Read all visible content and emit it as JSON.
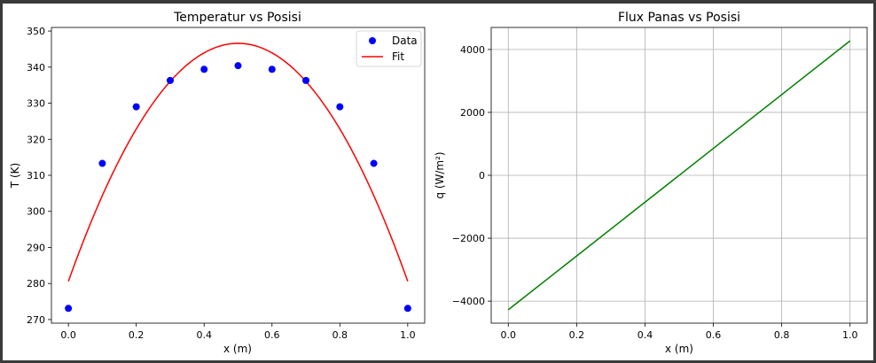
{
  "chart_data": [
    {
      "type": "scatter+line",
      "title": "Temperatur vs Posisi",
      "xlabel": "x (m)",
      "ylabel": "T (K)",
      "xlim": [
        -0.05,
        1.05
      ],
      "ylim": [
        269,
        351
      ],
      "xticks": [
        0.0,
        0.2,
        0.4,
        0.6,
        0.8,
        1.0
      ],
      "xtick_labels": [
        "0.0",
        "0.2",
        "0.4",
        "0.6",
        "0.8",
        "1.0"
      ],
      "yticks": [
        270,
        280,
        290,
        300,
        310,
        320,
        330,
        340,
        350
      ],
      "ytick_labels": [
        "270",
        "280",
        "290",
        "300",
        "310",
        "320",
        "330",
        "340",
        "350"
      ],
      "grid": false,
      "legend_position": "top-right",
      "series": [
        {
          "name": "Data",
          "kind": "scatter",
          "color": "#0000ff",
          "x": [
            0.0,
            0.1,
            0.2,
            0.3,
            0.4,
            0.5,
            0.6,
            0.7,
            0.8,
            0.9,
            1.0
          ],
          "y": [
            273.1,
            313.3,
            329.0,
            336.3,
            339.4,
            340.4,
            339.4,
            336.3,
            329.0,
            313.3,
            273.1
          ]
        },
        {
          "name": "Fit",
          "kind": "line",
          "color": "#ff0000",
          "model": "quadratic",
          "vertex_x": 0.5,
          "vertex_y": 346.6,
          "endpoint_y": 280.6
        }
      ]
    },
    {
      "type": "line",
      "title": "Flux Panas vs Posisi",
      "xlabel": "x (m)",
      "ylabel": "q (W/m²)",
      "xlim": [
        -0.05,
        1.05
      ],
      "ylim": [
        -4700,
        4700
      ],
      "xticks": [
        0.0,
        0.2,
        0.4,
        0.6,
        0.8,
        1.0
      ],
      "xtick_labels": [
        "0.0",
        "0.2",
        "0.4",
        "0.6",
        "0.8",
        "1.0"
      ],
      "yticks": [
        -4000,
        -2000,
        0,
        2000,
        4000
      ],
      "ytick_labels": [
        "−4000",
        "−2000",
        "0",
        "2000",
        "4000"
      ],
      "grid": true,
      "series": [
        {
          "kind": "line",
          "color": "#008000",
          "x": [
            0.0,
            1.0
          ],
          "y": [
            -4275,
            4275
          ]
        }
      ]
    }
  ]
}
